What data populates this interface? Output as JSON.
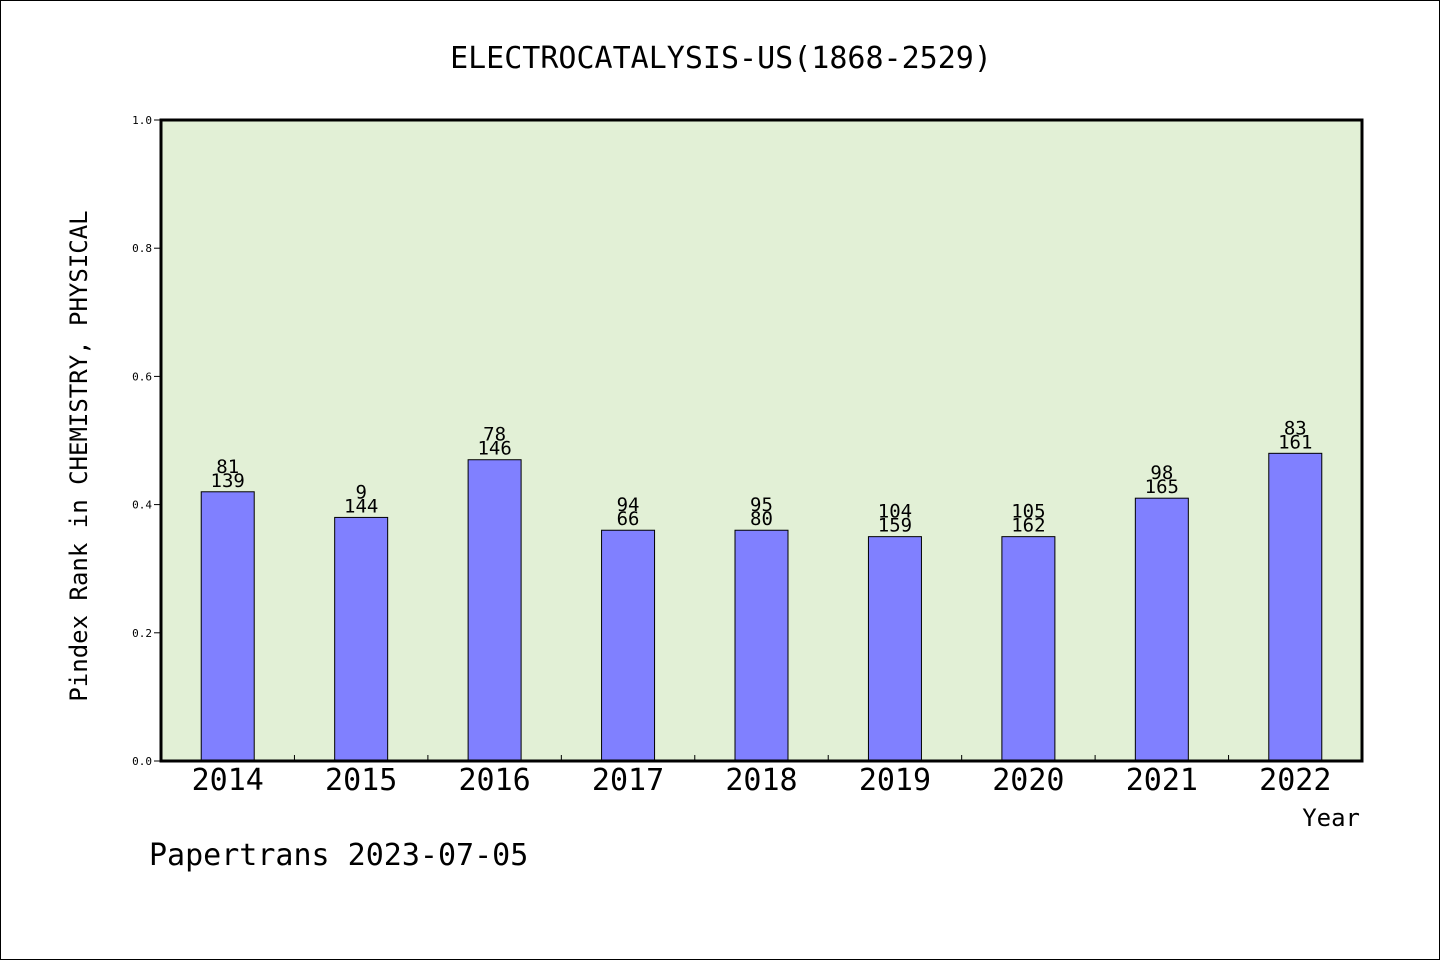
{
  "chart_data": {
    "type": "bar",
    "title": "ELECTROCATALYSIS-US(1868-2529)",
    "xlabel": "Year",
    "ylabel": "Pindex Rank in CHEMISTRY, PHYSICAL",
    "categories": [
      "2014",
      "2015",
      "2016",
      "2017",
      "2018",
      "2019",
      "2020",
      "2021",
      "2022"
    ],
    "values": [
      0.42,
      0.38,
      0.47,
      0.36,
      0.36,
      0.35,
      0.35,
      0.41,
      0.48
    ],
    "label_top": [
      "81",
      "9",
      "78",
      "94",
      "95",
      "104",
      "105",
      "98",
      "83"
    ],
    "label_bottom": [
      "139",
      "144",
      "146",
      "66",
      "80",
      "159",
      "162",
      "165",
      "161"
    ],
    "ylim": [
      0,
      1.0
    ],
    "yticks": [
      0.0,
      0.2,
      0.4,
      0.6,
      0.8,
      1.0
    ],
    "ytick_labels": [
      "0.0",
      "0.2",
      "0.4",
      "0.6",
      "0.8",
      "1.0"
    ],
    "grid": false,
    "colors": {
      "plot_background": "#e2f0d6",
      "bar_fill": "#8080ff",
      "bar_stroke": "#000000"
    }
  },
  "footer": {
    "credit": "Papertrans 2023-07-05"
  }
}
